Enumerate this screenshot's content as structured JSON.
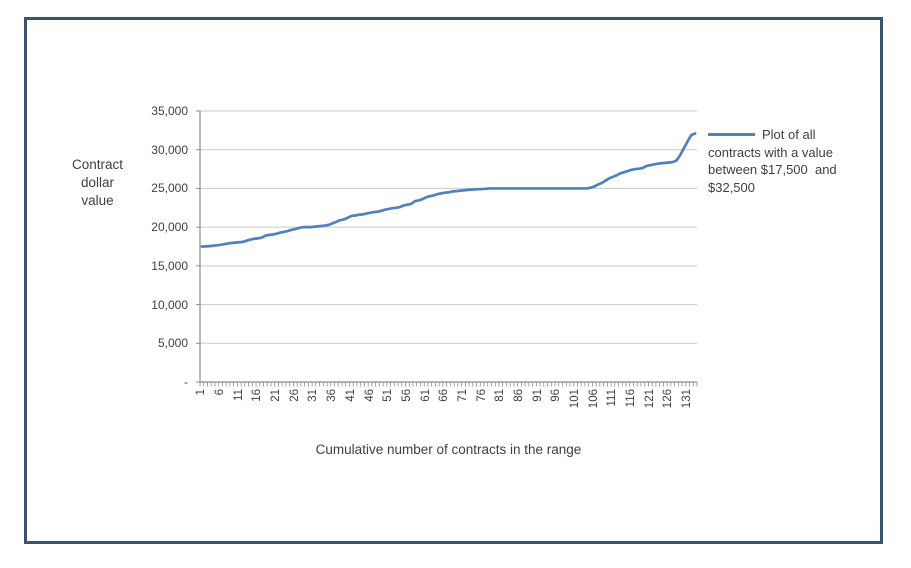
{
  "colors": {
    "series": "#4F81BD",
    "gridline": "#C9C9C9",
    "axis": "#8C8C8C",
    "text": "#3F3F3F",
    "frame_border": "#3C5270"
  },
  "y_axis": {
    "title_lines": [
      "Contract",
      "dollar",
      "value"
    ],
    "tick_labels": [
      "35,000",
      "30,000",
      "25,000",
      "20,000",
      "15,000",
      "10,000",
      "5,000",
      "-"
    ]
  },
  "x_axis": {
    "title": "Cumulative number of contracts in the range",
    "tick_labels": [
      "1",
      "6",
      "11",
      "16",
      "21",
      "26",
      "31",
      "36",
      "41",
      "46",
      "51",
      "56",
      "61",
      "66",
      "71",
      "76",
      "81",
      "86",
      "91",
      "96",
      "101",
      "106",
      "111",
      "116",
      "121",
      "126",
      "131"
    ]
  },
  "legend": {
    "lines": [
      "Plot of all",
      "contracts with a value",
      "between $17,500  and",
      "$32,500"
    ]
  },
  "chart_data": {
    "type": "line",
    "title": "",
    "xlabel": "Cumulative number of contracts in the range",
    "ylabel": "Contract dollar value",
    "legend_entry": "Plot of all contracts with a value between $17,500 and $32,500",
    "legend_position": "right",
    "grid": true,
    "ylim": [
      0,
      35000
    ],
    "ytick_step": 5000,
    "x_start": 1,
    "x_count": 133,
    "xtick_interval": 5,
    "series": [
      {
        "name": "Plot of all contracts with a value between $17,500 and $32,500",
        "values": [
          17500,
          17520,
          17550,
          17600,
          17650,
          17720,
          17800,
          17900,
          17950,
          18000,
          18050,
          18100,
          18250,
          18400,
          18500,
          18550,
          18650,
          18900,
          19000,
          19050,
          19150,
          19300,
          19400,
          19500,
          19650,
          19750,
          19900,
          20000,
          20000,
          20000,
          20050,
          20100,
          20150,
          20200,
          20300,
          20500,
          20700,
          20900,
          21000,
          21200,
          21450,
          21500,
          21600,
          21650,
          21750,
          21850,
          21950,
          22000,
          22100,
          22250,
          22350,
          22450,
          22500,
          22600,
          22800,
          22900,
          23000,
          23350,
          23450,
          23600,
          23850,
          24000,
          24100,
          24250,
          24350,
          24450,
          24500,
          24600,
          24650,
          24700,
          24750,
          24800,
          24850,
          24870,
          24900,
          24920,
          24950,
          25000,
          25000,
          25000,
          25000,
          25000,
          25000,
          25000,
          25000,
          25000,
          25000,
          25000,
          25000,
          25000,
          25000,
          25000,
          25000,
          25000,
          25000,
          25000,
          25000,
          25000,
          25000,
          25000,
          25000,
          25000,
          25000,
          25000,
          25100,
          25250,
          25500,
          25700,
          26000,
          26300,
          26500,
          26700,
          26950,
          27100,
          27250,
          27400,
          27500,
          27550,
          27650,
          27900,
          28000,
          28100,
          28200,
          28250,
          28300,
          28350,
          28400,
          28600,
          29300,
          30200,
          31100,
          31900,
          32100
        ]
      }
    ]
  }
}
